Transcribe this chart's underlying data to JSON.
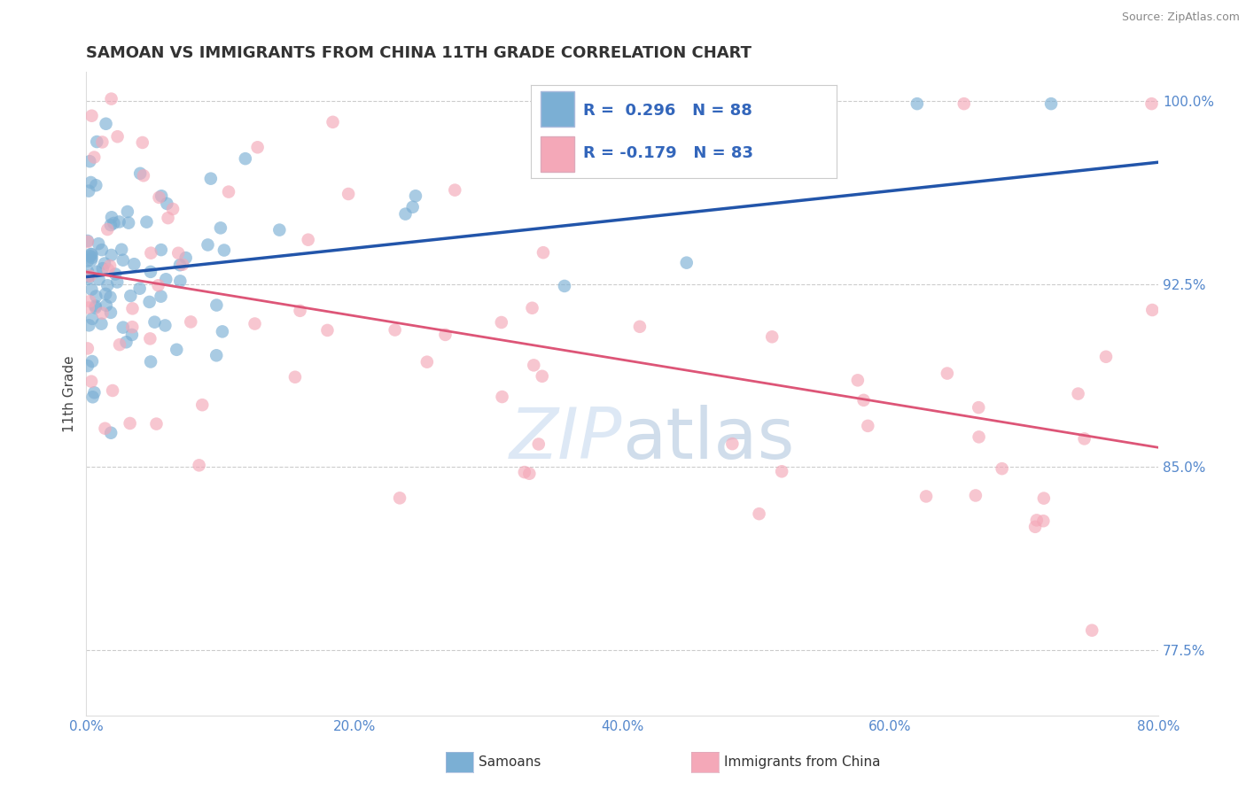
{
  "title": "SAMOAN VS IMMIGRANTS FROM CHINA 11TH GRADE CORRELATION CHART",
  "source_text": "Source: ZipAtlas.com",
  "ylabel": "11th Grade",
  "xlim": [
    0.0,
    0.8
  ],
  "ylim": [
    0.748,
    1.012
  ],
  "xtick_labels": [
    "0.0%",
    "20.0%",
    "40.0%",
    "60.0%",
    "80.0%"
  ],
  "xtick_values": [
    0.0,
    0.2,
    0.4,
    0.6,
    0.8
  ],
  "ytick_labels_right": [
    "100.0%",
    "92.5%",
    "85.0%",
    "77.5%"
  ],
  "ytick_values_right": [
    1.0,
    0.925,
    0.85,
    0.775
  ],
  "grid_color": "#cccccc",
  "background_color": "#ffffff",
  "samoans_color": "#7bafd4",
  "china_color": "#f4a8b8",
  "blue_line_color": "#2255aa",
  "pink_line_color": "#dd5577",
  "R_samoans": 0.296,
  "N_samoans": 88,
  "R_china": -0.179,
  "N_china": 83,
  "legend_label_1": "Samoans",
  "legend_label_2": "Immigrants from China",
  "watermark_zip": "ZIP",
  "watermark_atlas": "atlas",
  "blue_line_x": [
    0.0,
    0.8
  ],
  "blue_line_y": [
    0.928,
    0.975
  ],
  "pink_line_x": [
    0.0,
    0.8
  ],
  "pink_line_y": [
    0.93,
    0.858
  ]
}
